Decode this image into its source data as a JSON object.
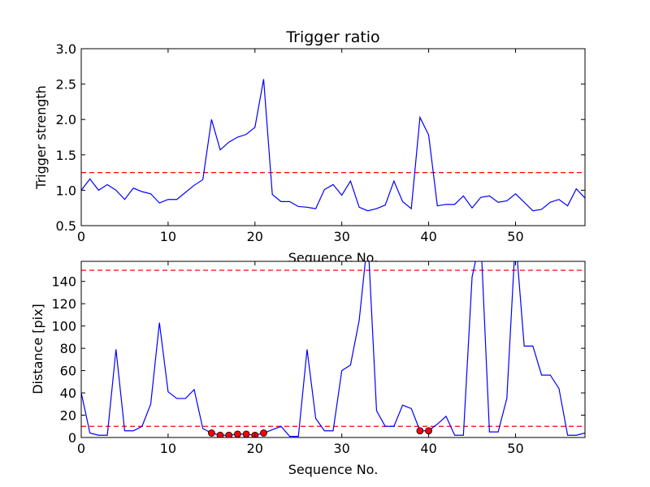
{
  "chart_data": [
    {
      "type": "line",
      "title": "Trigger ratio",
      "xlabel": "Sequence No.",
      "ylabel": "Trigger strength",
      "xlim": [
        0,
        58
      ],
      "ylim": [
        0.5,
        3.0
      ],
      "xticks": [
        0,
        10,
        20,
        30,
        40,
        50
      ],
      "yticks": [
        0.5,
        1.0,
        1.5,
        2.0,
        2.5,
        3.0
      ],
      "xtick_labels": [
        "0",
        "10",
        "20",
        "30",
        "40",
        "50"
      ],
      "ytick_labels": [
        "0.5",
        "1.0",
        "1.5",
        "2.0",
        "2.5",
        "3.0"
      ],
      "grid": false,
      "series": [
        {
          "color": "#0000ff",
          "x": [
            0,
            1,
            2,
            3,
            4,
            5,
            6,
            7,
            8,
            9,
            10,
            11,
            12,
            13,
            14,
            15,
            16,
            17,
            18,
            19,
            20,
            21,
            22,
            23,
            24,
            25,
            26,
            27,
            28,
            29,
            30,
            31,
            32,
            33,
            34,
            35,
            36,
            37,
            38,
            39,
            40,
            41,
            42,
            43,
            44,
            45,
            46,
            47,
            48,
            49,
            50,
            51,
            52,
            53,
            54,
            55,
            56,
            57,
            58
          ],
          "y": [
            1.0,
            1.16,
            1.0,
            1.08,
            1.0,
            0.87,
            1.03,
            0.98,
            0.95,
            0.82,
            0.87,
            0.87,
            0.97,
            1.07,
            1.15,
            2.0,
            1.57,
            1.68,
            1.75,
            1.79,
            1.89,
            2.57,
            0.94,
            0.84,
            0.84,
            0.77,
            0.76,
            0.74,
            1.01,
            1.08,
            0.93,
            1.13,
            0.76,
            0.71,
            0.74,
            0.79,
            1.13,
            0.84,
            0.74,
            2.03,
            1.78,
            0.78,
            0.8,
            0.8,
            0.92,
            0.75,
            0.9,
            0.92,
            0.83,
            0.85,
            0.95,
            0.83,
            0.71,
            0.73,
            0.83,
            0.87,
            0.78,
            1.02,
            0.89
          ]
        }
      ],
      "reference_lines": [
        {
          "axis": "y",
          "value": 1.25,
          "color": "#ff0000",
          "style": "dashed"
        }
      ]
    },
    {
      "type": "line",
      "title": "",
      "xlabel": "Sequence No.",
      "ylabel": "Distance [pix]",
      "xlim": [
        0,
        58
      ],
      "ylim": [
        0,
        158
      ],
      "xticks": [
        0,
        10,
        20,
        30,
        40,
        50
      ],
      "yticks": [
        0,
        20,
        40,
        60,
        80,
        100,
        120,
        140
      ],
      "xtick_labels": [
        "0",
        "10",
        "20",
        "30",
        "40",
        "50"
      ],
      "ytick_labels": [
        "0",
        "20",
        "40",
        "60",
        "80",
        "100",
        "120",
        "140"
      ],
      "grid": false,
      "series": [
        {
          "color": "#0000ff",
          "x": [
            0,
            1,
            2,
            3,
            4,
            5,
            6,
            7,
            8,
            9,
            10,
            11,
            12,
            13,
            14,
            15,
            16,
            17,
            18,
            19,
            20,
            21,
            22,
            23,
            24,
            25,
            26,
            27,
            28,
            29,
            30,
            31,
            32,
            33,
            34,
            35,
            36,
            37,
            38,
            39,
            40,
            41,
            42,
            43,
            44,
            45,
            46,
            47,
            48,
            49,
            50,
            51,
            52,
            53,
            54,
            55,
            56,
            57,
            58
          ],
          "y": [
            40,
            4,
            2,
            2,
            79,
            6,
            6,
            10,
            30,
            103,
            41,
            35,
            35,
            43,
            8,
            4,
            2,
            2,
            3,
            3,
            2,
            4,
            7,
            10,
            1,
            1,
            79,
            17,
            6,
            6,
            60,
            65,
            105,
            180,
            24,
            10,
            10,
            29,
            26,
            6,
            6,
            12,
            19,
            2,
            2,
            144,
            180,
            5,
            5,
            35,
            180,
            82,
            82,
            56,
            56,
            44,
            2,
            2,
            4
          ]
        }
      ],
      "markers": {
        "color": "#ff0000",
        "x": [
          15,
          16,
          17,
          18,
          19,
          20,
          21,
          39,
          40
        ],
        "y": [
          4,
          2,
          2,
          3,
          3,
          2,
          4,
          6,
          6
        ]
      },
      "reference_lines": [
        {
          "axis": "y",
          "value": 10,
          "color": "#ff0000",
          "style": "dashed"
        },
        {
          "axis": "y",
          "value": 150,
          "color": "#ff0000",
          "style": "dashed"
        }
      ]
    }
  ]
}
